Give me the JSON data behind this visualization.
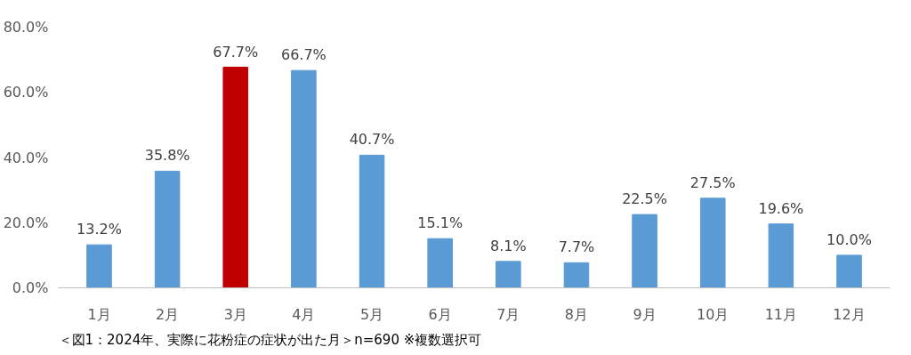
{
  "chart_data": {
    "type": "bar",
    "categories": [
      "1月",
      "2月",
      "3月",
      "4月",
      "5月",
      "6月",
      "7月",
      "8月",
      "9月",
      "10月",
      "11月",
      "12月"
    ],
    "values": [
      13.2,
      35.8,
      67.7,
      66.7,
      40.7,
      15.1,
      8.1,
      7.7,
      22.5,
      27.5,
      19.6,
      10.0
    ],
    "colors": [
      "#5b9bd5",
      "#5b9bd5",
      "#c00000",
      "#5b9bd5",
      "#5b9bd5",
      "#5b9bd5",
      "#5b9bd5",
      "#5b9bd5",
      "#5b9bd5",
      "#5b9bd5",
      "#5b9bd5",
      "#5b9bd5"
    ],
    "value_labels": [
      "13.2%",
      "35.8%",
      "67.7%",
      "66.7%",
      "40.7%",
      "15.1%",
      "8.1%",
      "7.7%",
      "22.5%",
      "27.5%",
      "19.6%",
      "10.0%"
    ],
    "ylim": [
      0,
      80
    ],
    "yticks": [
      {
        "value": 0,
        "label": "0.0%"
      },
      {
        "value": 20,
        "label": "20.0%"
      },
      {
        "value": 40,
        "label": "40.0%"
      },
      {
        "value": 60,
        "label": "60.0%"
      },
      {
        "value": 80,
        "label": "80.0%"
      }
    ],
    "grid": false,
    "annotations": [
      "＜図1：2024年、実際に花粉症の症状が出た月＞n=690 ※複数選択可"
    ]
  }
}
